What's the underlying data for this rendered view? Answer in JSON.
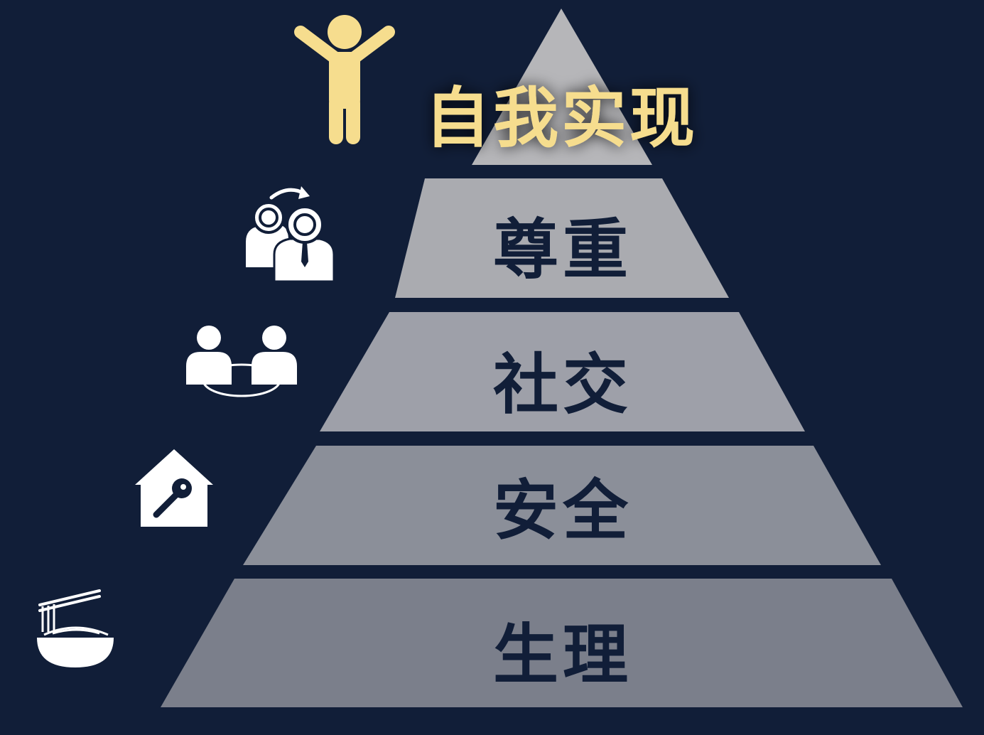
{
  "pyramid": {
    "levels": [
      {
        "label": "自我实现",
        "icon": "person-arms-raised-icon",
        "color": "#b6b6b9"
      },
      {
        "label": "尊重",
        "icon": "respected-people-icon",
        "color": "#aaabb0"
      },
      {
        "label": "社交",
        "icon": "people-connected-icon",
        "color": "#9ea0a9"
      },
      {
        "label": "安全",
        "icon": "house-key-icon",
        "color": "#8b8f99"
      },
      {
        "label": "生理",
        "icon": "noodle-bowl-icon",
        "color": "#7b7f8b"
      }
    ]
  },
  "colors": {
    "background": "#111e38",
    "highlight_text": "#f6dd8e",
    "tier_text": "#111e38",
    "icon_white": "#ffffff",
    "icon_gold": "#f6dd8e"
  }
}
